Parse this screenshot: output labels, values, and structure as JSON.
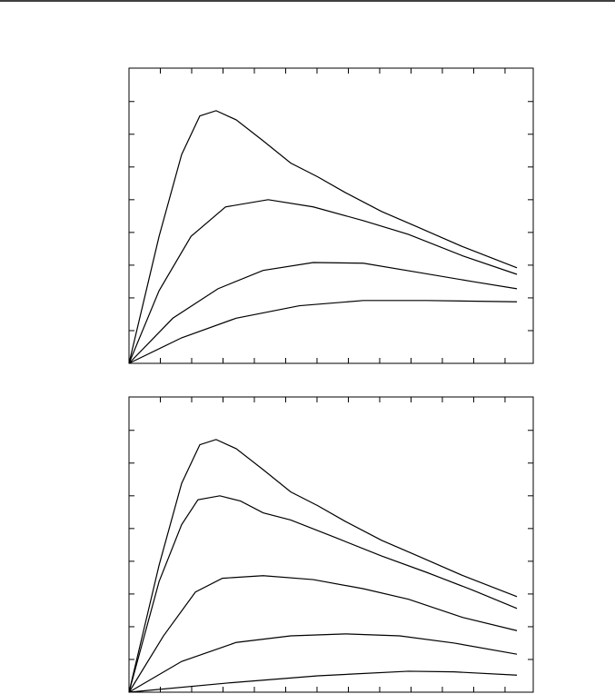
{
  "chart_data": [
    {
      "type": "line",
      "xlim": [
        0,
        6.45
      ],
      "ylim": [
        0,
        4.51
      ],
      "xticks": [
        0,
        0.5,
        1,
        1.5,
        2,
        2.5,
        3,
        3.5,
        4,
        4.5,
        5,
        5.5,
        6
      ],
      "yticks": [
        0,
        0.5,
        1,
        1.5,
        2,
        2.5,
        3,
        3.5,
        4
      ],
      "series": [
        {
          "color": "#000000",
          "x": [
            0,
            0.48,
            0.84,
            1.13,
            1.39,
            1.71,
            2.14,
            2.58,
            3.01,
            3.45,
            4.03,
            4.61,
            5.33,
            6.19
          ],
          "values": [
            0,
            1.94,
            3.19,
            3.78,
            3.86,
            3.72,
            3.4,
            3.06,
            2.85,
            2.61,
            2.32,
            2.08,
            1.78,
            1.46
          ]
        },
        {
          "color": "#000000",
          "x": [
            0,
            0.48,
            0.99,
            1.54,
            2.22,
            2.94,
            3.74,
            4.46,
            5.33,
            6.19
          ],
          "values": [
            0,
            1.11,
            1.94,
            2.39,
            2.5,
            2.39,
            2.18,
            1.97,
            1.64,
            1.36
          ]
        },
        {
          "color": "#000000",
          "x": [
            0,
            0.7,
            1.42,
            2.14,
            2.94,
            3.74,
            4.61,
            5.48,
            6.19
          ],
          "values": [
            0,
            0.69,
            1.14,
            1.42,
            1.54,
            1.53,
            1.39,
            1.25,
            1.14
          ]
        },
        {
          "color": "#000000",
          "x": [
            0,
            0.84,
            1.71,
            2.72,
            3.74,
            4.75,
            6.19
          ],
          "values": [
            0,
            0.39,
            0.69,
            0.88,
            0.96,
            0.96,
            0.94
          ]
        }
      ]
    },
    {
      "type": "line",
      "xlim": [
        0,
        6.45
      ],
      "ylim": [
        0,
        4.51
      ],
      "xticks": [
        0,
        0.5,
        1,
        1.5,
        2,
        2.5,
        3,
        3.5,
        4,
        4.5,
        5,
        5.5,
        6
      ],
      "yticks": [
        0,
        0.5,
        1,
        1.5,
        2,
        2.5,
        3,
        3.5,
        4
      ],
      "series": [
        {
          "color": "#000000",
          "x": [
            0,
            0.48,
            0.84,
            1.13,
            1.39,
            1.71,
            2.14,
            2.58,
            3.01,
            3.45,
            4.03,
            4.61,
            5.33,
            6.19
          ],
          "values": [
            0,
            1.94,
            3.19,
            3.78,
            3.86,
            3.72,
            3.4,
            3.06,
            2.85,
            2.61,
            2.32,
            2.08,
            1.78,
            1.46
          ]
        },
        {
          "color": "#000000",
          "x": [
            0,
            0.48,
            0.84,
            1.1,
            1.45,
            1.78,
            2.14,
            2.58,
            3.3,
            4.03,
            4.75,
            5.48,
            6.19
          ],
          "values": [
            0,
            1.69,
            2.56,
            2.94,
            3.0,
            2.92,
            2.74,
            2.63,
            2.36,
            2.08,
            1.83,
            1.56,
            1.28
          ]
        },
        {
          "color": "#000000",
          "x": [
            0,
            0.55,
            1.06,
            1.49,
            2.14,
            2.94,
            3.74,
            4.46,
            5.33,
            6.19
          ],
          "values": [
            0,
            0.86,
            1.53,
            1.74,
            1.78,
            1.72,
            1.58,
            1.42,
            1.14,
            0.94
          ]
        },
        {
          "color": "#000000",
          "x": [
            0,
            0.84,
            1.71,
            2.58,
            3.45,
            4.32,
            5.19,
            6.19
          ],
          "values": [
            0,
            0.47,
            0.76,
            0.86,
            0.89,
            0.86,
            0.75,
            0.58
          ]
        },
        {
          "color": "#000000",
          "x": [
            0,
            1.57,
            3.01,
            4.46,
            5.19,
            6.19
          ],
          "values": [
            0,
            0.14,
            0.25,
            0.32,
            0.31,
            0.26
          ]
        }
      ]
    }
  ]
}
